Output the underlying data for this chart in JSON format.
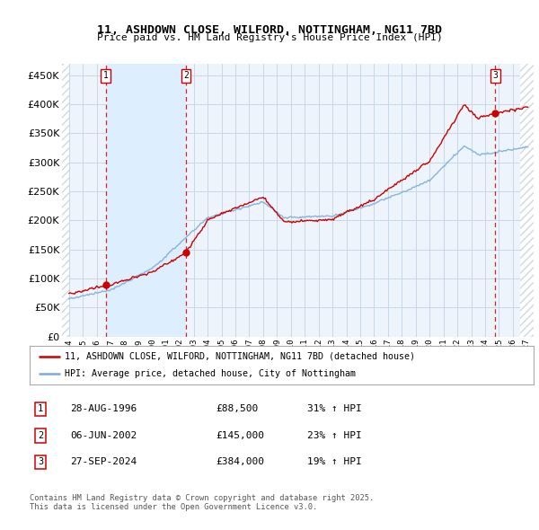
{
  "title1": "11, ASHDOWN CLOSE, WILFORD, NOTTINGHAM, NG11 7BD",
  "title2": "Price paid vs. HM Land Registry's House Price Index (HPI)",
  "xlim_start": 1993.5,
  "xlim_end": 2027.5,
  "ylim_min": 0,
  "ylim_max": 470000,
  "yticks": [
    0,
    50000,
    100000,
    150000,
    200000,
    250000,
    300000,
    350000,
    400000,
    450000
  ],
  "sale_dates": [
    1996.65,
    2002.43,
    2024.74
  ],
  "sale_prices": [
    88500,
    145000,
    384000
  ],
  "sale_labels": [
    "1",
    "2",
    "3"
  ],
  "legend_red": "11, ASHDOWN CLOSE, WILFORD, NOTTINGHAM, NG11 7BD (detached house)",
  "legend_blue": "HPI: Average price, detached house, City of Nottingham",
  "table_rows": [
    [
      "1",
      "28-AUG-1996",
      "£88,500",
      "31% ↑ HPI"
    ],
    [
      "2",
      "06-JUN-2002",
      "£145,000",
      "23% ↑ HPI"
    ],
    [
      "3",
      "27-SEP-2024",
      "£384,000",
      "19% ↑ HPI"
    ]
  ],
  "footnote": "Contains HM Land Registry data © Crown copyright and database right 2025.\nThis data is licensed under the Open Government Licence v3.0.",
  "red_color": "#cc0000",
  "blue_color": "#7aaddb",
  "shade_color": "#ddeeff",
  "grid_color": "#c8d8e8",
  "bg_color": "#ffffff",
  "plot_bg": "#eef4fb",
  "hatch_color": "#d0d8e0"
}
